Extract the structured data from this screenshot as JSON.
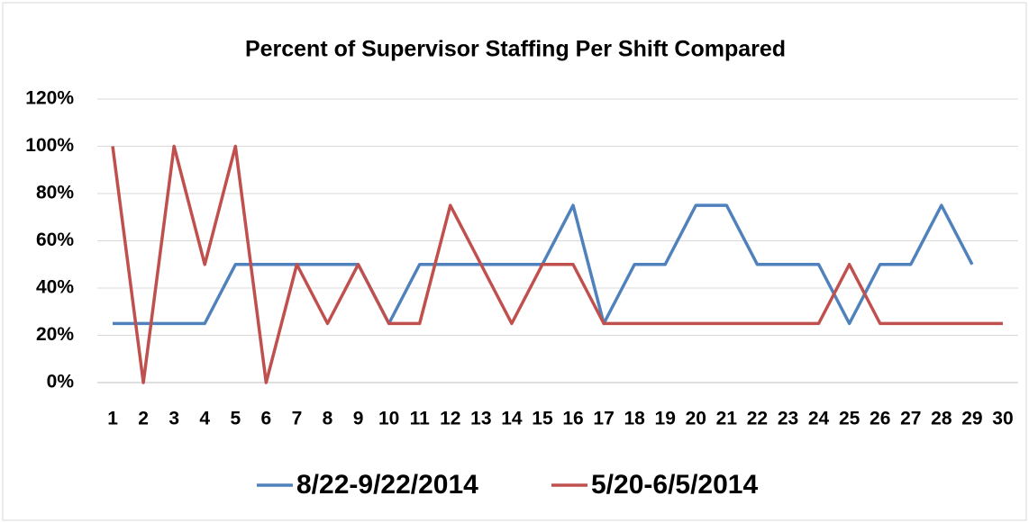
{
  "chart_data": {
    "type": "line",
    "title": "Percent of Supervisor Staffing Per Shift Compared",
    "categories": [
      "1",
      "2",
      "3",
      "4",
      "5",
      "6",
      "7",
      "8",
      "9",
      "10",
      "11",
      "12",
      "13",
      "14",
      "15",
      "16",
      "17",
      "18",
      "19",
      "20",
      "21",
      "22",
      "23",
      "24",
      "25",
      "26",
      "27",
      "28",
      "29",
      "30"
    ],
    "series": [
      {
        "name": "8/22-9/22/2014",
        "color": "#4f81bd",
        "values": [
          25,
          25,
          25,
          25,
          50,
          50,
          50,
          50,
          50,
          25,
          50,
          50,
          50,
          50,
          50,
          75,
          25,
          50,
          50,
          75,
          75,
          50,
          50,
          50,
          25,
          50,
          50,
          75,
          50,
          null
        ]
      },
      {
        "name": "5/20-6/5/2014",
        "color": "#c0504d",
        "values": [
          100,
          0,
          100,
          50,
          100,
          0,
          50,
          25,
          50,
          25,
          25,
          75,
          50,
          25,
          50,
          50,
          25,
          25,
          25,
          25,
          25,
          25,
          25,
          25,
          50,
          25,
          25,
          25,
          25,
          25
        ]
      }
    ],
    "ylim": [
      0,
      120
    ],
    "yticks": [
      {
        "value": 0,
        "label": "0%"
      },
      {
        "value": 20,
        "label": "20%"
      },
      {
        "value": 40,
        "label": "40%"
      },
      {
        "value": 60,
        "label": "60%"
      },
      {
        "value": 80,
        "label": "80%"
      },
      {
        "value": 100,
        "label": "100%"
      },
      {
        "value": 120,
        "label": "120%"
      }
    ],
    "grid": true,
    "legend": "bottom"
  }
}
